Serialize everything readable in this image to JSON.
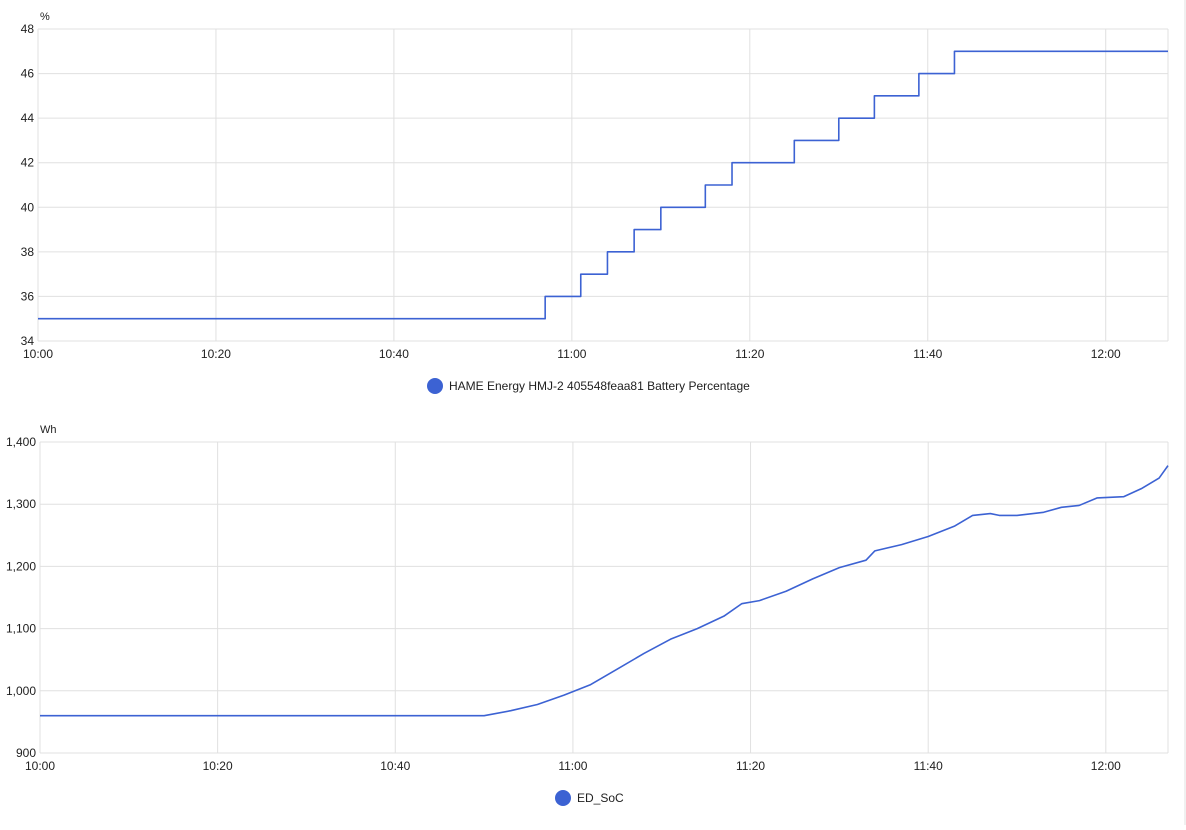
{
  "colors": {
    "series": "#3c62d3",
    "grid": "#e0e0e0",
    "axis_text": "#212121"
  },
  "chart_data": [
    {
      "type": "line",
      "step": true,
      "ylabel": "%",
      "ylim": [
        34,
        48
      ],
      "yticks": [
        "34",
        "36",
        "38",
        "40",
        "42",
        "44",
        "46",
        "48"
      ],
      "ytick_values": [
        34,
        36,
        38,
        40,
        42,
        44,
        46,
        48
      ],
      "xlim": [
        "10:00",
        "12:07"
      ],
      "xticks": [
        "10:00",
        "10:20",
        "10:40",
        "11:00",
        "11:20",
        "11:40",
        "12:00"
      ],
      "grid": true,
      "legend_position": "bottom-center",
      "series": [
        {
          "name": "HAME Energy HMJ-2 405548feaa81 Battery Percentage",
          "x": [
            "10:00",
            "10:57",
            "11:01",
            "11:04",
            "11:07",
            "11:10",
            "11:15",
            "11:18",
            "11:25",
            "11:30",
            "11:34",
            "11:39",
            "11:43",
            "12:07"
          ],
          "y": [
            35,
            36,
            37,
            38,
            39,
            40,
            41,
            42,
            43,
            44,
            45,
            46,
            47,
            47
          ]
        }
      ]
    },
    {
      "type": "line",
      "ylabel": "Wh",
      "ylim": [
        900,
        1400
      ],
      "yticks": [
        "900",
        "1,000",
        "1,100",
        "1,200",
        "1,300",
        "1,400"
      ],
      "ytick_values": [
        900,
        1000,
        1100,
        1200,
        1300,
        1400
      ],
      "xlim": [
        "10:00",
        "12:07"
      ],
      "xticks": [
        "10:00",
        "10:20",
        "10:40",
        "11:00",
        "11:20",
        "11:40",
        "12:00"
      ],
      "grid": true,
      "legend_position": "bottom-center",
      "series": [
        {
          "name": "ED_SoC",
          "x": [
            "10:00",
            "10:50",
            "10:53",
            "10:56",
            "10:59",
            "11:02",
            "11:05",
            "11:08",
            "11:11",
            "11:14",
            "11:17",
            "11:19",
            "11:21",
            "11:24",
            "11:27",
            "11:30",
            "11:33",
            "11:34",
            "11:37",
            "11:40",
            "11:43",
            "11:45",
            "11:47",
            "11:48",
            "11:50",
            "11:53",
            "11:55",
            "11:57",
            "11:59",
            "12:02",
            "12:04",
            "12:06",
            "12:07"
          ],
          "y": [
            960,
            960,
            968,
            978,
            993,
            1010,
            1035,
            1060,
            1083,
            1100,
            1120,
            1140,
            1145,
            1160,
            1180,
            1198,
            1210,
            1225,
            1235,
            1248,
            1265,
            1282,
            1285,
            1282,
            1282,
            1287,
            1295,
            1298,
            1310,
            1312,
            1325,
            1342,
            1362
          ]
        }
      ]
    }
  ]
}
